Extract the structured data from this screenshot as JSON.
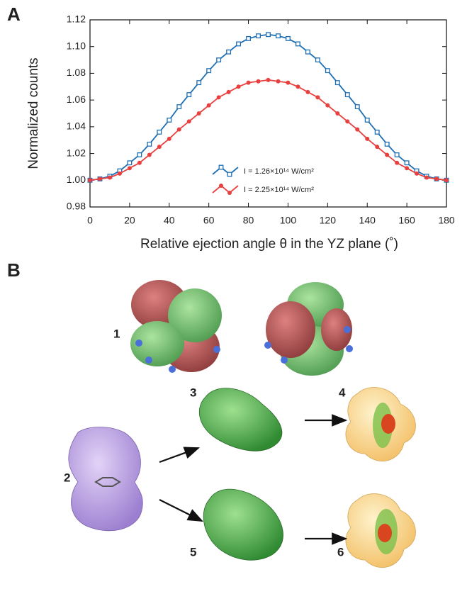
{
  "panel_labels": [
    "A",
    "B"
  ],
  "chart_data": {
    "type": "line",
    "x_label": "Relative ejection angle θ in the YZ plane (˚)",
    "y_label": "Normalized counts",
    "x": [
      0,
      5,
      10,
      15,
      20,
      25,
      30,
      35,
      40,
      45,
      50,
      55,
      60,
      65,
      70,
      75,
      80,
      85,
      90,
      95,
      100,
      105,
      110,
      115,
      120,
      125,
      130,
      135,
      140,
      145,
      150,
      155,
      160,
      165,
      170,
      175,
      180
    ],
    "series": [
      {
        "name": "I = 1.26×10¹⁴ W/cm²",
        "color": "#1f6fb4",
        "marker": "square",
        "values": [
          1.0,
          1.001,
          1.003,
          1.007,
          1.013,
          1.019,
          1.027,
          1.036,
          1.045,
          1.055,
          1.064,
          1.073,
          1.082,
          1.09,
          1.096,
          1.102,
          1.106,
          1.108,
          1.109,
          1.108,
          1.106,
          1.102,
          1.096,
          1.09,
          1.082,
          1.073,
          1.064,
          1.055,
          1.045,
          1.036,
          1.027,
          1.019,
          1.013,
          1.007,
          1.003,
          1.001,
          1.0
        ]
      },
      {
        "name": "I = 2.25×10¹⁴ W/cm²",
        "color": "#e8403f",
        "marker": "circle",
        "values": [
          1.0,
          1.001,
          1.002,
          1.005,
          1.009,
          1.013,
          1.019,
          1.025,
          1.031,
          1.038,
          1.044,
          1.05,
          1.056,
          1.062,
          1.066,
          1.07,
          1.073,
          1.074,
          1.075,
          1.074,
          1.073,
          1.07,
          1.066,
          1.062,
          1.056,
          1.05,
          1.044,
          1.038,
          1.031,
          1.025,
          1.019,
          1.013,
          1.009,
          1.005,
          1.002,
          1.001,
          1.0
        ]
      }
    ],
    "xlim": [
      0,
      180
    ],
    "xticks": [
      0,
      20,
      40,
      60,
      80,
      100,
      120,
      140,
      160,
      180
    ],
    "ylim": [
      0.98,
      1.12
    ],
    "yticks": [
      0.98,
      {
        "value": 1,
        "label": "1.00"
      },
      1.02,
      1.04,
      1.06,
      1.08,
      {
        "value": 1.1,
        "label": "1.10"
      },
      1.12
    ],
    "grid": false,
    "legend": "bottom"
  },
  "structure_labels": [
    "1",
    "2",
    "3",
    "4",
    "5",
    "6"
  ]
}
